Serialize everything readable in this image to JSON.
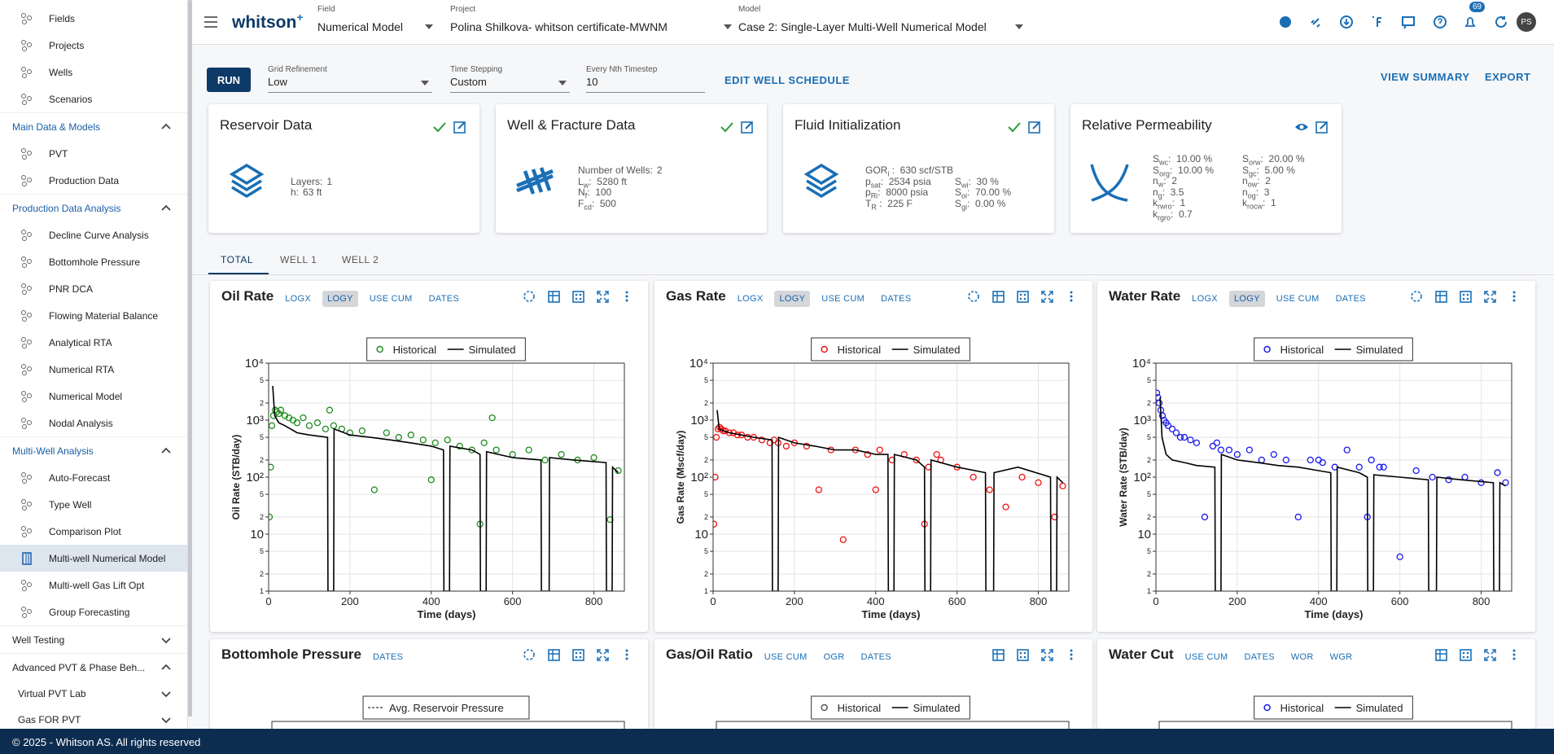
{
  "sidebar": {
    "links": [
      "Fields",
      "Projects",
      "Wells",
      "Scenarios"
    ],
    "groups": [
      {
        "title": "Main Data & Models",
        "expanded": true,
        "items": [
          "PVT",
          "Production Data"
        ]
      },
      {
        "title": "Production Data Analysis",
        "expanded": true,
        "items": [
          "Decline Curve Analysis",
          "Bottomhole Pressure",
          "PNR DCA",
          "Flowing Material Balance",
          "Analytical RTA",
          "Numerical RTA",
          "Numerical Model",
          "Nodal Analysis"
        ]
      },
      {
        "title": "Multi-Well Analysis",
        "expanded": true,
        "selected": 3,
        "items": [
          "Auto-Forecast",
          "Type Well",
          "Comparison Plot",
          "Multi-well Numerical Model",
          "Multi-well Gas Lift Opt",
          "Group Forecasting"
        ]
      },
      {
        "title": "Well Testing",
        "expanded": false
      },
      {
        "title": "Advanced PVT & Phase Beh...",
        "expanded": true,
        "subgroups": [
          "Virtual PVT Lab",
          "Gas FOR PVT"
        ]
      }
    ]
  },
  "topbar": {
    "logo": "whitson",
    "logo_sup": "+",
    "fields": [
      {
        "label": "Field",
        "value": "Numerical Model"
      },
      {
        "label": "Project",
        "value": "Polina Shilkova- whitson certificate-MWNM"
      },
      {
        "label": "Model",
        "value": "Case 2: Single-Layer Multi-Well Numerical Model"
      }
    ],
    "badge": 69,
    "avatar": "PS"
  },
  "controls": {
    "run": "RUN",
    "inputs": [
      {
        "label": "Grid Refinement",
        "value": "Low",
        "dropdown": true
      },
      {
        "label": "Time Stepping",
        "value": "Custom",
        "dropdown": true
      },
      {
        "label": "Every Nth Timestep",
        "value": 10,
        "dropdown": false
      }
    ],
    "edit": "EDIT WELL SCHEDULE",
    "actions": [
      "VIEW SUMMARY",
      "EXPORT"
    ]
  },
  "cards": [
    {
      "title": "Reservoir Data",
      "status": "check",
      "columns": [
        [
          null,
          {
            "label": "Layers:",
            "value": "1"
          },
          {
            "label": "h:",
            "value": "63 ft"
          }
        ]
      ]
    },
    {
      "title": "Well & Fracture Data",
      "status": "check",
      "columns": [
        [
          {
            "label": "Number of Wells:",
            "value": "2"
          },
          {
            "label": "L",
            "sub": "w",
            "value": ":  5280 ft"
          },
          {
            "label": "N",
            "sub": "f",
            "value": ":  100"
          },
          {
            "label": "F",
            "sub": "cd",
            "value": ":  500"
          }
        ]
      ]
    },
    {
      "title": "Fluid Initialization",
      "status": "check",
      "columns": [
        [
          {
            "label": "GOR",
            "sub": "i",
            "value": " :  630 scf/STB"
          },
          {
            "label": "p",
            "sub": "sat",
            "value": ":  2534 psia"
          },
          {
            "label": "p",
            "sub": "Ri",
            "value": ":  8000 psia"
          },
          {
            "label": "T",
            "sub": "R",
            "value": " :  225 F"
          }
        ],
        [
          null,
          {
            "label": "S",
            "sub": "wi",
            "value": ":  30 %"
          },
          {
            "label": "S",
            "sub": "oi",
            "value": ":  70.00 %"
          },
          {
            "label": "S",
            "sub": "gi",
            "value": ":  0.00 %"
          }
        ]
      ]
    },
    {
      "title": "Relative Permeability",
      "status": "eye",
      "columns": [
        [
          {
            "label": "S",
            "sub": "wc",
            "value": ":  10.00 %"
          },
          {
            "label": "S",
            "sub": "org",
            "value": ":  10.00 %"
          },
          {
            "label": "n",
            "sub": "w",
            "value": ":  2"
          },
          {
            "label": "n",
            "sub": "g",
            "value": ":  3.5"
          },
          {
            "label": "k",
            "sub": "rwro",
            "value": ":  1"
          },
          {
            "label": "k",
            "sub": "rgro",
            "value": ":  0.7"
          }
        ],
        [
          {
            "label": "S",
            "sub": "orw",
            "value": ":  20.00 %"
          },
          {
            "label": "S",
            "sub": "gc",
            "value": ":  5.00 %"
          },
          {
            "label": "n",
            "sub": "ow",
            "value": ":  2"
          },
          {
            "label": "n",
            "sub": "og",
            "value": ":  3"
          },
          {
            "label": "k",
            "sub": "rocw",
            "value": ":  1"
          }
        ]
      ]
    }
  ],
  "tabs": {
    "items": [
      "TOTAL",
      "WELL 1",
      "WELL 2"
    ],
    "active": 0
  },
  "chart_data": [
    {
      "type": "scatter",
      "title": "Oil Rate",
      "toolbar": [
        "LOGX",
        "LOGY",
        "USE CUM",
        "DATES"
      ],
      "toolbar_active": 1,
      "ylog": true,
      "grid": true,
      "xlabel": "Time (days)",
      "ylabel": "Oil Rate (STB/day)",
      "xlim": [
        0,
        875
      ],
      "xticks": [
        0,
        200,
        400,
        600,
        800
      ],
      "ylim": [
        1,
        10000
      ],
      "yticks": [
        1,
        2,
        5,
        10,
        {
          "value": 20,
          "label": "2"
        },
        {
          "value": 50,
          "label": "5"
        },
        {
          "value": 100,
          "label": "10²"
        },
        {
          "value": 200,
          "label": "2"
        },
        {
          "value": 500,
          "label": "5"
        },
        {
          "value": 1000,
          "label": "10³"
        },
        {
          "value": 2000,
          "label": "2"
        },
        {
          "value": 5000,
          "label": "5"
        },
        {
          "value": 10000,
          "label": "10⁴"
        }
      ],
      "series": [
        {
          "name": "Historical",
          "color": "#1e8c1e",
          "mode": "markers",
          "x": [
            2,
            5,
            8,
            12,
            16,
            20,
            25,
            30,
            40,
            50,
            60,
            70,
            85,
            100,
            120,
            140,
            150,
            160,
            180,
            200,
            230,
            260,
            290,
            320,
            350,
            380,
            400,
            410,
            440,
            470,
            500,
            520,
            530,
            550,
            560,
            600,
            640,
            680,
            720,
            760,
            800,
            840,
            860
          ],
          "values": [
            20,
            150,
            800,
            1200,
            1500,
            1400,
            1300,
            1500,
            1200,
            1100,
            1000,
            900,
            1100,
            800,
            900,
            700,
            1500,
            800,
            700,
            600,
            650,
            60,
            600,
            500,
            550,
            450,
            90,
            400,
            450,
            350,
            300,
            15,
            400,
            1100,
            300,
            250,
            300,
            200,
            250,
            200,
            220,
            18,
            130
          ]
        },
        {
          "name": "Simulated",
          "color": "#000000",
          "mode": "lines",
          "x": [
            10,
            15,
            25,
            40,
            70,
            100,
            145,
            146,
            160,
            161,
            200,
            250,
            300,
            350,
            400,
            430,
            431,
            445,
            446,
            500,
            520,
            521,
            535,
            536,
            600,
            670,
            671,
            690,
            691,
            750,
            830,
            831,
            845,
            846,
            860
          ],
          "values": [
            4000,
            1200,
            900,
            800,
            600,
            550,
            500,
            1,
            1,
            700,
            550,
            500,
            450,
            400,
            350,
            300,
            1,
            1,
            350,
            300,
            250,
            1,
            1,
            280,
            220,
            200,
            1,
            1,
            220,
            200,
            180,
            1,
            1,
            150,
            120
          ]
        }
      ]
    },
    {
      "type": "scatter",
      "title": "Gas Rate",
      "toolbar": [
        "LOGX",
        "LOGY",
        "USE CUM",
        "DATES"
      ],
      "toolbar_active": 1,
      "ylog": true,
      "grid": true,
      "xlabel": "Time (days)",
      "ylabel": "Gas Rate (Mscf/day)",
      "xlim": [
        0,
        875
      ],
      "xticks": [
        0,
        200,
        400,
        600,
        800
      ],
      "ylim": [
        1,
        10000
      ],
      "yticks": [
        1,
        2,
        5,
        10,
        {
          "value": 20,
          "label": "2"
        },
        {
          "value": 50,
          "label": "5"
        },
        {
          "value": 100,
          "label": "10²"
        },
        {
          "value": 200,
          "label": "2"
        },
        {
          "value": 500,
          "label": "5"
        },
        {
          "value": 1000,
          "label": "10³"
        },
        {
          "value": 2000,
          "label": "2"
        },
        {
          "value": 5000,
          "label": "5"
        },
        {
          "value": 10000,
          "label": "10⁴"
        }
      ],
      "series": [
        {
          "name": "Historical",
          "color": "#ee1111",
          "mode": "markers",
          "x": [
            2,
            5,
            8,
            12,
            16,
            20,
            25,
            30,
            40,
            50,
            60,
            70,
            85,
            100,
            120,
            140,
            150,
            160,
            180,
            200,
            230,
            260,
            290,
            320,
            350,
            380,
            400,
            410,
            440,
            470,
            500,
            520,
            530,
            550,
            560,
            600,
            640,
            680,
            720,
            760,
            800,
            840,
            860
          ],
          "values": [
            15,
            100,
            500,
            700,
            750,
            700,
            650,
            650,
            600,
            600,
            550,
            550,
            500,
            500,
            450,
            400,
            450,
            400,
            350,
            400,
            350,
            60,
            300,
            8,
            300,
            250,
            60,
            300,
            200,
            250,
            200,
            15,
            150,
            250,
            200,
            150,
            100,
            60,
            30,
            100,
            80,
            20,
            70
          ]
        },
        {
          "name": "Simulated",
          "color": "#000000",
          "mode": "lines",
          "x": [
            10,
            15,
            25,
            40,
            70,
            100,
            145,
            146,
            160,
            161,
            200,
            250,
            300,
            350,
            400,
            430,
            431,
            445,
            446,
            500,
            520,
            521,
            535,
            536,
            600,
            670,
            671,
            690,
            691,
            750,
            830,
            831,
            845,
            846,
            860
          ],
          "values": [
            1500,
            700,
            650,
            600,
            550,
            500,
            450,
            1,
            1,
            500,
            400,
            350,
            300,
            300,
            250,
            250,
            1,
            1,
            250,
            200,
            150,
            1,
            1,
            200,
            150,
            120,
            1,
            1,
            120,
            150,
            100,
            1,
            1,
            100,
            80
          ]
        }
      ]
    },
    {
      "type": "scatter",
      "title": "Water Rate",
      "toolbar": [
        "LOGX",
        "LOGY",
        "USE CUM",
        "DATES"
      ],
      "toolbar_active": 1,
      "ylog": true,
      "grid": true,
      "xlabel": "Time (days)",
      "ylabel": "Water Rate (STB/day)",
      "xlim": [
        0,
        875
      ],
      "xticks": [
        0,
        200,
        400,
        600,
        800
      ],
      "ylim": [
        1,
        10000
      ],
      "yticks": [
        1,
        2,
        5,
        10,
        {
          "value": 20,
          "label": "2"
        },
        {
          "value": 50,
          "label": "5"
        },
        {
          "value": 100,
          "label": "10²"
        },
        {
          "value": 200,
          "label": "2"
        },
        {
          "value": 500,
          "label": "5"
        },
        {
          "value": 1000,
          "label": "10³"
        },
        {
          "value": 2000,
          "label": "2"
        },
        {
          "value": 5000,
          "label": "5"
        },
        {
          "value": 10000,
          "label": "10⁴"
        }
      ],
      "series": [
        {
          "name": "Historical",
          "color": "#1a1aee",
          "mode": "markers",
          "x": [
            2,
            5,
            8,
            12,
            16,
            20,
            25,
            30,
            40,
            50,
            60,
            70,
            85,
            100,
            120,
            140,
            150,
            160,
            180,
            200,
            230,
            260,
            290,
            320,
            350,
            380,
            400,
            410,
            440,
            470,
            500,
            520,
            530,
            550,
            560,
            600,
            640,
            680,
            720,
            760,
            800,
            840,
            860
          ],
          "values": [
            3000,
            2500,
            2000,
            1500,
            1200,
            1000,
            900,
            800,
            700,
            600,
            500,
            500,
            450,
            400,
            20,
            350,
            400,
            300,
            300,
            250,
            300,
            200,
            250,
            200,
            20,
            200,
            200,
            180,
            150,
            300,
            150,
            20,
            200,
            150,
            150,
            4,
            130,
            100,
            90,
            100,
            80,
            120,
            80
          ]
        },
        {
          "name": "Simulated",
          "color": "#000000",
          "mode": "lines",
          "x": [
            10,
            15,
            25,
            40,
            70,
            100,
            145,
            146,
            160,
            161,
            200,
            250,
            300,
            350,
            400,
            430,
            431,
            445,
            446,
            500,
            520,
            521,
            535,
            536,
            600,
            670,
            671,
            690,
            691,
            750,
            830,
            831,
            845,
            846,
            860
          ],
          "values": [
            2500,
            500,
            250,
            200,
            180,
            160,
            150,
            1,
            1,
            250,
            200,
            180,
            160,
            150,
            130,
            120,
            1,
            1,
            150,
            120,
            100,
            1,
            1,
            110,
            100,
            90,
            1,
            1,
            100,
            90,
            80,
            1,
            1,
            80,
            70
          ]
        }
      ]
    }
  ],
  "bottom_panels": [
    {
      "title": "Bottomhole Pressure",
      "toolbar": [
        "DATES"
      ],
      "icons": 5,
      "legend": [
        {
          "name": "Avg. Reservoir Pressure",
          "color": "#555555",
          "mode": "dashed"
        }
      ]
    },
    {
      "title": "Gas/Oil Ratio",
      "toolbar": [
        "USE CUM",
        "OGR",
        "DATES"
      ],
      "icons": 4,
      "legend": [
        {
          "name": "Historical",
          "color": "#555555",
          "mode": "markers"
        },
        {
          "name": "Simulated",
          "color": "#000000",
          "mode": "lines"
        }
      ]
    },
    {
      "title": "Water Cut",
      "toolbar": [
        "USE CUM",
        "DATES",
        "WOR",
        "WGR"
      ],
      "icons": 4,
      "legend": [
        {
          "name": "Historical",
          "color": "#1a1aee",
          "mode": "markers"
        },
        {
          "name": "Simulated",
          "color": "#000000",
          "mode": "lines"
        }
      ]
    }
  ],
  "footer": "© 2025 - Whitson AS. All rights reserved"
}
